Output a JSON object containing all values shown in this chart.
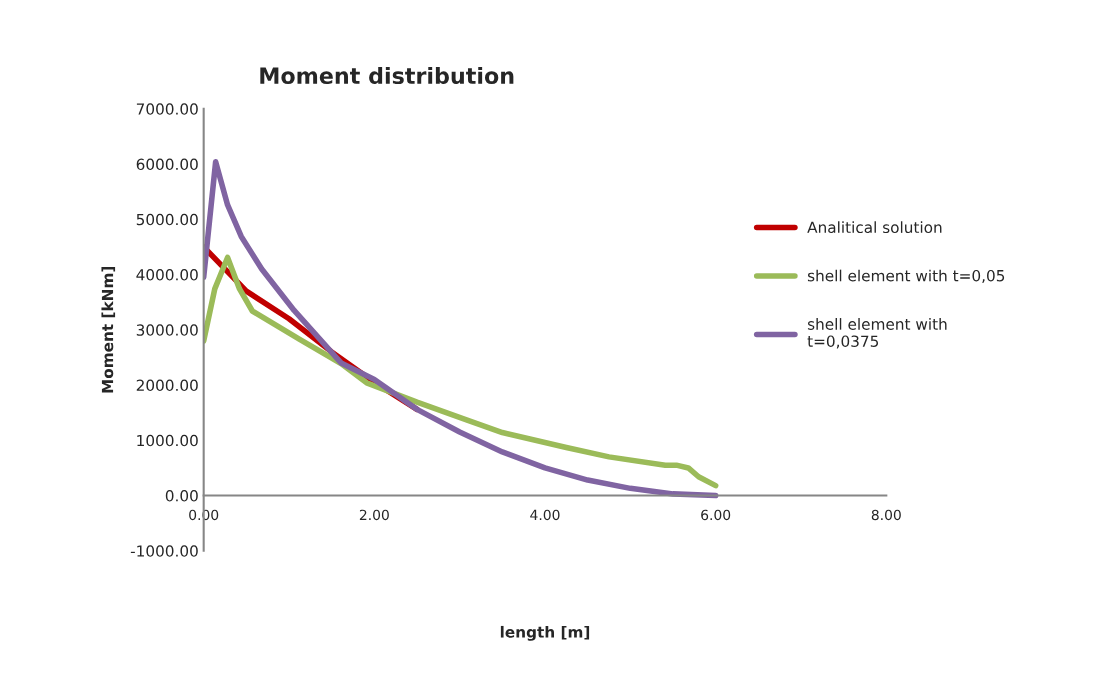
{
  "chart_data": {
    "type": "line",
    "title": "Moment distribution",
    "xlabel": "length [m]",
    "ylabel": "Moment [kNm]",
    "xlim": [
      0,
      8
    ],
    "xticks": [
      {
        "value": 0,
        "label": "0.00"
      },
      {
        "value": 2,
        "label": "2.00"
      },
      {
        "value": 4,
        "label": "4.00"
      },
      {
        "value": 6,
        "label": "6.00"
      },
      {
        "value": 8,
        "label": "8.00"
      }
    ],
    "ylim": [
      -1000,
      7000
    ],
    "yticks": [
      {
        "value": -1000,
        "label": "-1000.00"
      },
      {
        "value": 0,
        "label": "0.00"
      },
      {
        "value": 1000,
        "label": "1000.00"
      },
      {
        "value": 2000,
        "label": "2000.00"
      },
      {
        "value": 3000,
        "label": "3000.00"
      },
      {
        "value": 4000,
        "label": "4000.00"
      },
      {
        "value": 5000,
        "label": "5000.00"
      },
      {
        "value": 6000,
        "label": "6000.00"
      },
      {
        "value": 7000,
        "label": "7000.00"
      }
    ],
    "grid": false,
    "legend": "right",
    "marker": "none",
    "line_style": "solid",
    "series": [
      {
        "name": "Analitical solution",
        "color": "#c00000",
        "x": [
          0,
          0.5,
          1,
          1.5,
          2,
          2.5
        ],
        "values": [
          4500,
          3700,
          3200,
          2600,
          2050,
          1560
        ]
      },
      {
        "name": "shell element with t=0,05",
        "color": "#9bbb59",
        "x": [
          0,
          0.13,
          0.28,
          0.42,
          0.57,
          1.12,
          1.61,
          1.91,
          2.5,
          3.08,
          3.5,
          4.25,
          4.75,
          5.41,
          5.54,
          5.68,
          5.8,
          6.0
        ],
        "values": [
          2800,
          3740,
          4310,
          3740,
          3340,
          2830,
          2390,
          2040,
          1690,
          1370,
          1140,
          870,
          700,
          550,
          550,
          500,
          340,
          180
        ]
      },
      {
        "name": "shell element with\nt=0,0375",
        "color": "#8064a2",
        "x": [
          0,
          0.14,
          0.28,
          0.44,
          0.68,
          1.06,
          1.61,
          2,
          2.5,
          3,
          3.5,
          4,
          4.5,
          5,
          5.5,
          6
        ],
        "values": [
          3950,
          6040,
          5260,
          4690,
          4100,
          3350,
          2400,
          2100,
          1560,
          1150,
          790,
          500,
          280,
          130,
          30,
          0
        ]
      }
    ]
  }
}
